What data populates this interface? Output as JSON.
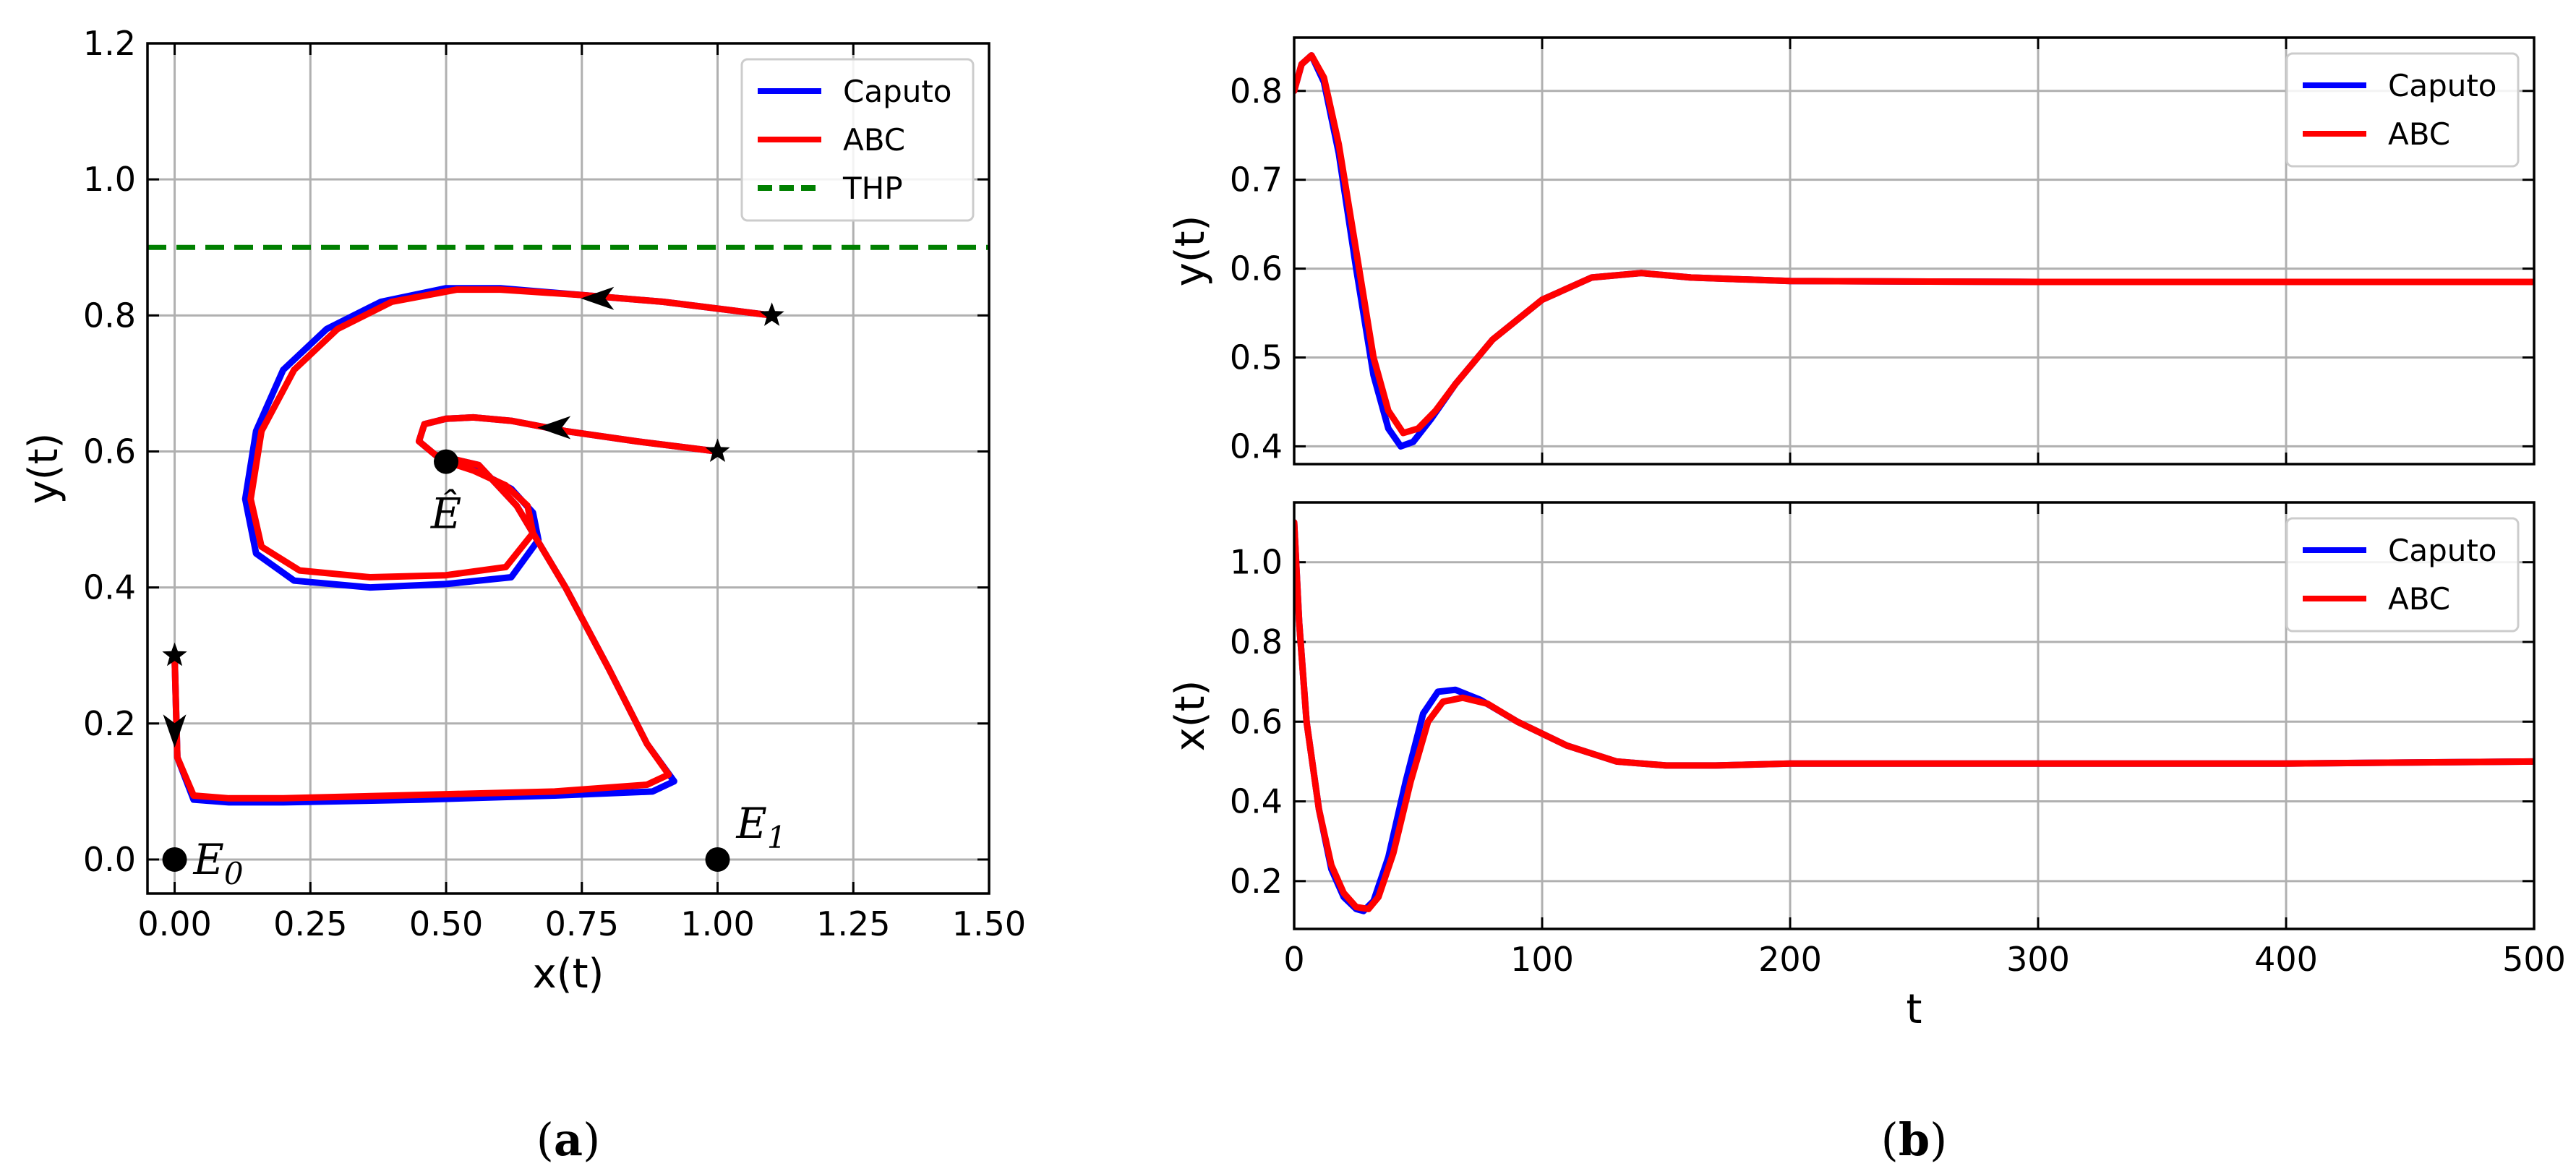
{
  "colors": {
    "caputo": "#0000ff",
    "abc": "#ff0000",
    "thp": "#008000"
  },
  "chart_data": [
    {
      "id": "a",
      "type": "line",
      "panel_label": "(a)",
      "xlabel": "x(t)",
      "ylabel": "y(t)",
      "xlim": [
        -0.05,
        1.5
      ],
      "ylim": [
        -0.05,
        1.2
      ],
      "xticks": [
        0,
        0.25,
        0.5,
        0.75,
        1.0,
        1.25,
        1.5
      ],
      "xtick_labels": [
        "0.00",
        "0.25",
        "0.50",
        "0.75",
        "1.00",
        "1.25",
        "1.50"
      ],
      "yticks": [
        0,
        0.2,
        0.4,
        0.6,
        0.8,
        1.0,
        1.2
      ],
      "ytick_labels": [
        "0.0",
        "0.2",
        "0.4",
        "0.6",
        "0.8",
        "1.0",
        "1.2"
      ],
      "grid": true,
      "legend": "top-right",
      "legend_entries": [
        "Caputo",
        "ABC",
        "THP"
      ],
      "series": [
        {
          "name": "Caputo",
          "color": "#0000ff",
          "x": [
            1.1,
            0.9,
            0.75,
            0.6,
            0.5,
            0.38,
            0.28,
            0.2,
            0.15,
            0.13,
            0.15,
            0.22,
            0.36,
            0.5,
            0.62,
            0.67,
            0.66,
            0.62,
            0.56,
            0.5
          ],
          "y": [
            0.8,
            0.82,
            0.83,
            0.84,
            0.84,
            0.82,
            0.78,
            0.72,
            0.63,
            0.53,
            0.45,
            0.41,
            0.4,
            0.405,
            0.415,
            0.47,
            0.51,
            0.545,
            0.57,
            0.585
          ]
        },
        {
          "name": "Caputo",
          "color": "#0000ff",
          "x": [
            1.0,
            0.85,
            0.72,
            0.62,
            0.55,
            0.5,
            0.46,
            0.45,
            0.48,
            0.56,
            0.63,
            0.72,
            0.8,
            0.87,
            0.92,
            0.88,
            0.7,
            0.45,
            0.2,
            0.1,
            0.035,
            0.005,
            0.0
          ],
          "y": [
            0.6,
            0.615,
            0.63,
            0.645,
            0.65,
            0.648,
            0.64,
            0.615,
            0.595,
            0.58,
            0.52,
            0.4,
            0.28,
            0.17,
            0.115,
            0.1,
            0.094,
            0.088,
            0.084,
            0.084,
            0.088,
            0.15,
            0.3
          ]
        },
        {
          "name": "ABC",
          "color": "#ff0000",
          "x": [
            1.1,
            0.9,
            0.75,
            0.6,
            0.52,
            0.4,
            0.3,
            0.22,
            0.16,
            0.14,
            0.16,
            0.23,
            0.36,
            0.5,
            0.61,
            0.66,
            0.65,
            0.61,
            0.55,
            0.5
          ],
          "y": [
            0.8,
            0.82,
            0.83,
            0.838,
            0.838,
            0.82,
            0.78,
            0.72,
            0.63,
            0.53,
            0.46,
            0.425,
            0.415,
            0.418,
            0.43,
            0.48,
            0.52,
            0.55,
            0.572,
            0.585
          ]
        },
        {
          "name": "ABC",
          "color": "#ff0000",
          "x": [
            1.0,
            0.85,
            0.72,
            0.62,
            0.55,
            0.5,
            0.46,
            0.45,
            0.48,
            0.56,
            0.63,
            0.72,
            0.8,
            0.87,
            0.91,
            0.87,
            0.7,
            0.45,
            0.2,
            0.1,
            0.035,
            0.005,
            0.0
          ],
          "y": [
            0.6,
            0.615,
            0.63,
            0.645,
            0.65,
            0.648,
            0.64,
            0.615,
            0.595,
            0.58,
            0.52,
            0.4,
            0.28,
            0.17,
            0.125,
            0.11,
            0.1,
            0.095,
            0.09,
            0.09,
            0.094,
            0.15,
            0.3
          ]
        }
      ],
      "thp": {
        "name": "THP",
        "y": 0.9
      },
      "stars": [
        {
          "x": 1.1,
          "y": 0.8
        },
        {
          "x": 1.0,
          "y": 0.6
        },
        {
          "x": 0.0,
          "y": 0.3
        }
      ],
      "arrows": [
        {
          "x": 0.78,
          "y": 0.825,
          "dir": "left"
        },
        {
          "x": 0.7,
          "y": 0.635,
          "dir": "left"
        },
        {
          "x": 0.0,
          "y": 0.19,
          "dir": "down"
        }
      ],
      "points": [
        {
          "label": "E",
          "sub": "0",
          "x": 0.0,
          "y": 0.0,
          "pos": "right"
        },
        {
          "label": "E",
          "sub": "1",
          "x": 1.0,
          "y": 0.0,
          "pos": "above-right"
        },
        {
          "label": "Ê",
          "sub": "",
          "x": 0.5,
          "y": 0.585,
          "pos": "below"
        }
      ]
    },
    {
      "id": "b_top",
      "type": "line",
      "xlabel": "",
      "ylabel": "y(t)",
      "xlim": [
        0,
        500
      ],
      "ylim": [
        0.38,
        0.86
      ],
      "xticks": [
        0,
        100,
        200,
        300,
        400,
        500
      ],
      "xtick_labels": [
        "",
        "",
        "",
        "",
        "",
        ""
      ],
      "yticks": [
        0.4,
        0.5,
        0.6,
        0.7,
        0.8
      ],
      "ytick_labels": [
        "0.4",
        "0.5",
        "0.6",
        "0.7",
        "0.8"
      ],
      "grid": true,
      "legend": "top-right",
      "legend_entries": [
        "Caputo",
        "ABC"
      ],
      "series": [
        {
          "name": "Caputo",
          "color": "#0000ff",
          "x": [
            0,
            3,
            7,
            12,
            18,
            25,
            32,
            38,
            43,
            48,
            55,
            65,
            80,
            100,
            120,
            140,
            160,
            200,
            300,
            400,
            500
          ],
          "y": [
            0.8,
            0.83,
            0.84,
            0.81,
            0.73,
            0.6,
            0.48,
            0.42,
            0.4,
            0.405,
            0.43,
            0.47,
            0.52,
            0.565,
            0.59,
            0.595,
            0.59,
            0.586,
            0.585,
            0.585,
            0.585
          ]
        },
        {
          "name": "ABC",
          "color": "#ff0000",
          "x": [
            0,
            3,
            7,
            12,
            18,
            25,
            32,
            38,
            44,
            50,
            57,
            65,
            80,
            100,
            120,
            140,
            160,
            200,
            300,
            400,
            500
          ],
          "y": [
            0.8,
            0.83,
            0.84,
            0.815,
            0.74,
            0.62,
            0.5,
            0.44,
            0.415,
            0.42,
            0.44,
            0.47,
            0.52,
            0.565,
            0.59,
            0.595,
            0.59,
            0.586,
            0.585,
            0.585,
            0.585
          ]
        }
      ]
    },
    {
      "id": "b_bottom",
      "type": "line",
      "panel_label": "(b)",
      "xlabel": "t",
      "ylabel": "x(t)",
      "xlim": [
        0,
        500
      ],
      "ylim": [
        0.08,
        1.15
      ],
      "xticks": [
        0,
        100,
        200,
        300,
        400,
        500
      ],
      "xtick_labels": [
        "0",
        "100",
        "200",
        "300",
        "400",
        "500"
      ],
      "yticks": [
        0.2,
        0.4,
        0.6,
        0.8,
        1.0
      ],
      "ytick_labels": [
        "0.2",
        "0.4",
        "0.6",
        "0.8",
        "1.0"
      ],
      "grid": true,
      "legend": "top-right",
      "legend_entries": [
        "Caputo",
        "ABC"
      ],
      "series": [
        {
          "name": "Caputo",
          "color": "#0000ff",
          "x": [
            0,
            2,
            5,
            10,
            15,
            20,
            25,
            28,
            32,
            38,
            45,
            52,
            58,
            65,
            75,
            90,
            110,
            130,
            150,
            170,
            200,
            300,
            400,
            500
          ],
          "y": [
            1.1,
            0.85,
            0.6,
            0.38,
            0.23,
            0.16,
            0.13,
            0.125,
            0.15,
            0.26,
            0.45,
            0.62,
            0.675,
            0.68,
            0.655,
            0.6,
            0.54,
            0.5,
            0.49,
            0.49,
            0.495,
            0.495,
            0.495,
            0.5
          ]
        },
        {
          "name": "ABC",
          "color": "#ff0000",
          "x": [
            0,
            2,
            5,
            10,
            15,
            20,
            25,
            30,
            34,
            40,
            47,
            54,
            60,
            68,
            78,
            90,
            110,
            130,
            150,
            170,
            200,
            300,
            400,
            500
          ],
          "y": [
            1.1,
            0.85,
            0.6,
            0.38,
            0.24,
            0.17,
            0.135,
            0.13,
            0.16,
            0.27,
            0.45,
            0.6,
            0.65,
            0.66,
            0.645,
            0.6,
            0.54,
            0.5,
            0.49,
            0.49,
            0.495,
            0.495,
            0.495,
            0.5
          ]
        }
      ]
    }
  ]
}
